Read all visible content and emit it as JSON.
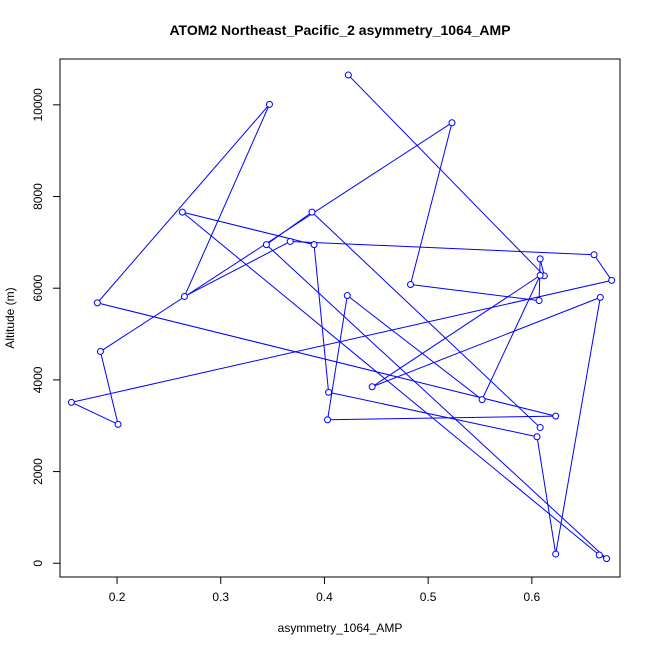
{
  "chart_data": {
    "type": "line",
    "title": "ATOM2 Northeast_Pacific_2 asymmetry_1064_AMP",
    "xlabel": "asymmetry_1064_AMP",
    "ylabel": "Altitude (m)",
    "xlim": [
      0.145,
      0.685
    ],
    "ylim": [
      -300,
      11000
    ],
    "x_ticks": [
      0.2,
      0.3,
      0.4,
      0.5,
      0.6
    ],
    "x_tick_labels": [
      "0.2",
      "0.3",
      "0.4",
      "0.5",
      "0.6"
    ],
    "y_ticks": [
      0,
      2000,
      4000,
      6000,
      8000,
      10000
    ],
    "y_tick_labels": [
      "0",
      "2000",
      "4000",
      "6000",
      "8000",
      "10000"
    ],
    "grid": false,
    "series_color": "#0000ff",
    "markers": "open-circle",
    "series": [
      {
        "x": [
          0.423,
          0.612,
          0.608,
          0.607,
          0.483,
          0.523,
          0.184,
          0.201,
          0.156,
          0.677,
          0.66,
          0.367,
          0.265,
          0.347,
          0.181,
          0.623,
          0.403,
          0.422,
          0.552,
          0.608,
          0.446,
          0.666,
          0.623,
          0.605,
          0.404,
          0.39,
          0.263,
          0.665,
          0.672,
          0.344,
          0.388,
          0.608
        ],
        "y": [
          10650,
          6270,
          6640,
          5730,
          6080,
          9610,
          4620,
          3030,
          3510,
          6170,
          6730,
          7020,
          5820,
          10010,
          5680,
          3210,
          3130,
          5840,
          3570,
          6280,
          3850,
          5800,
          200,
          2760,
          3730,
          6950,
          7660,
          180,
          100,
          6950,
          7660,
          2960
        ]
      }
    ]
  }
}
